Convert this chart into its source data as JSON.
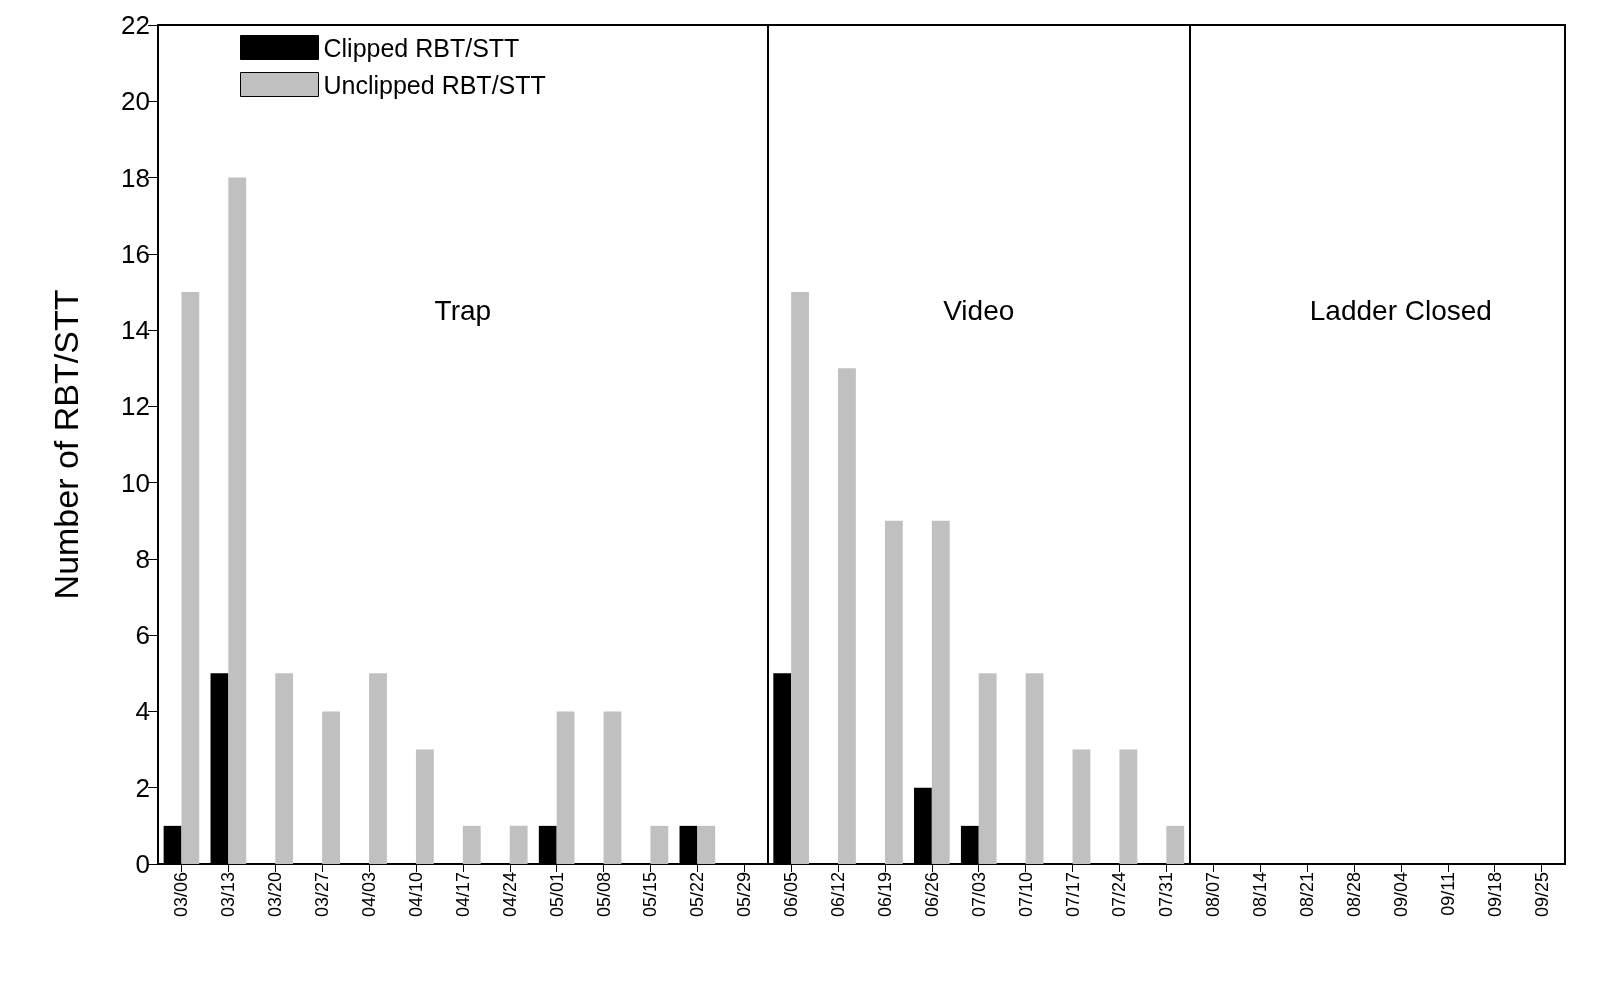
{
  "chart_data": {
    "type": "bar",
    "ylabel": "Number of RBT/STT",
    "categories": [
      "03/06",
      "03/13",
      "03/20",
      "03/27",
      "04/03",
      "04/10",
      "04/17",
      "04/24",
      "05/01",
      "05/08",
      "05/15",
      "05/22",
      "05/29",
      "06/05",
      "06/12",
      "06/19",
      "06/26",
      "07/03",
      "07/10",
      "07/17",
      "07/24",
      "07/31",
      "08/07",
      "08/14",
      "08/21",
      "08/28",
      "09/04",
      "09/11",
      "09/18",
      "09/25"
    ],
    "series": [
      {
        "name": "Clipped RBT/STT",
        "color": "#000000",
        "values": [
          1,
          5,
          0,
          0,
          0,
          0,
          0,
          0,
          1,
          0,
          0,
          1,
          0,
          5,
          0,
          0,
          2,
          1,
          0,
          0,
          0,
          0,
          0,
          0,
          0,
          0,
          0,
          0,
          0,
          0
        ]
      },
      {
        "name": "Unclipped RBT/STT",
        "color": "#c0c0c0",
        "values": [
          15,
          18,
          5,
          4,
          5,
          3,
          1,
          1,
          4,
          4,
          1,
          1,
          0,
          15,
          13,
          9,
          9,
          5,
          5,
          3,
          3,
          1,
          0,
          0,
          0,
          0,
          0,
          0,
          0,
          0
        ]
      }
    ],
    "ylim": [
      0,
      22
    ],
    "yticks": [
      0,
      2,
      4,
      6,
      8,
      10,
      12,
      14,
      16,
      18,
      20,
      22
    ],
    "annotations": [
      "Trap",
      "Video",
      "Ladder Closed"
    ],
    "grid": false,
    "legend": "top left"
  }
}
